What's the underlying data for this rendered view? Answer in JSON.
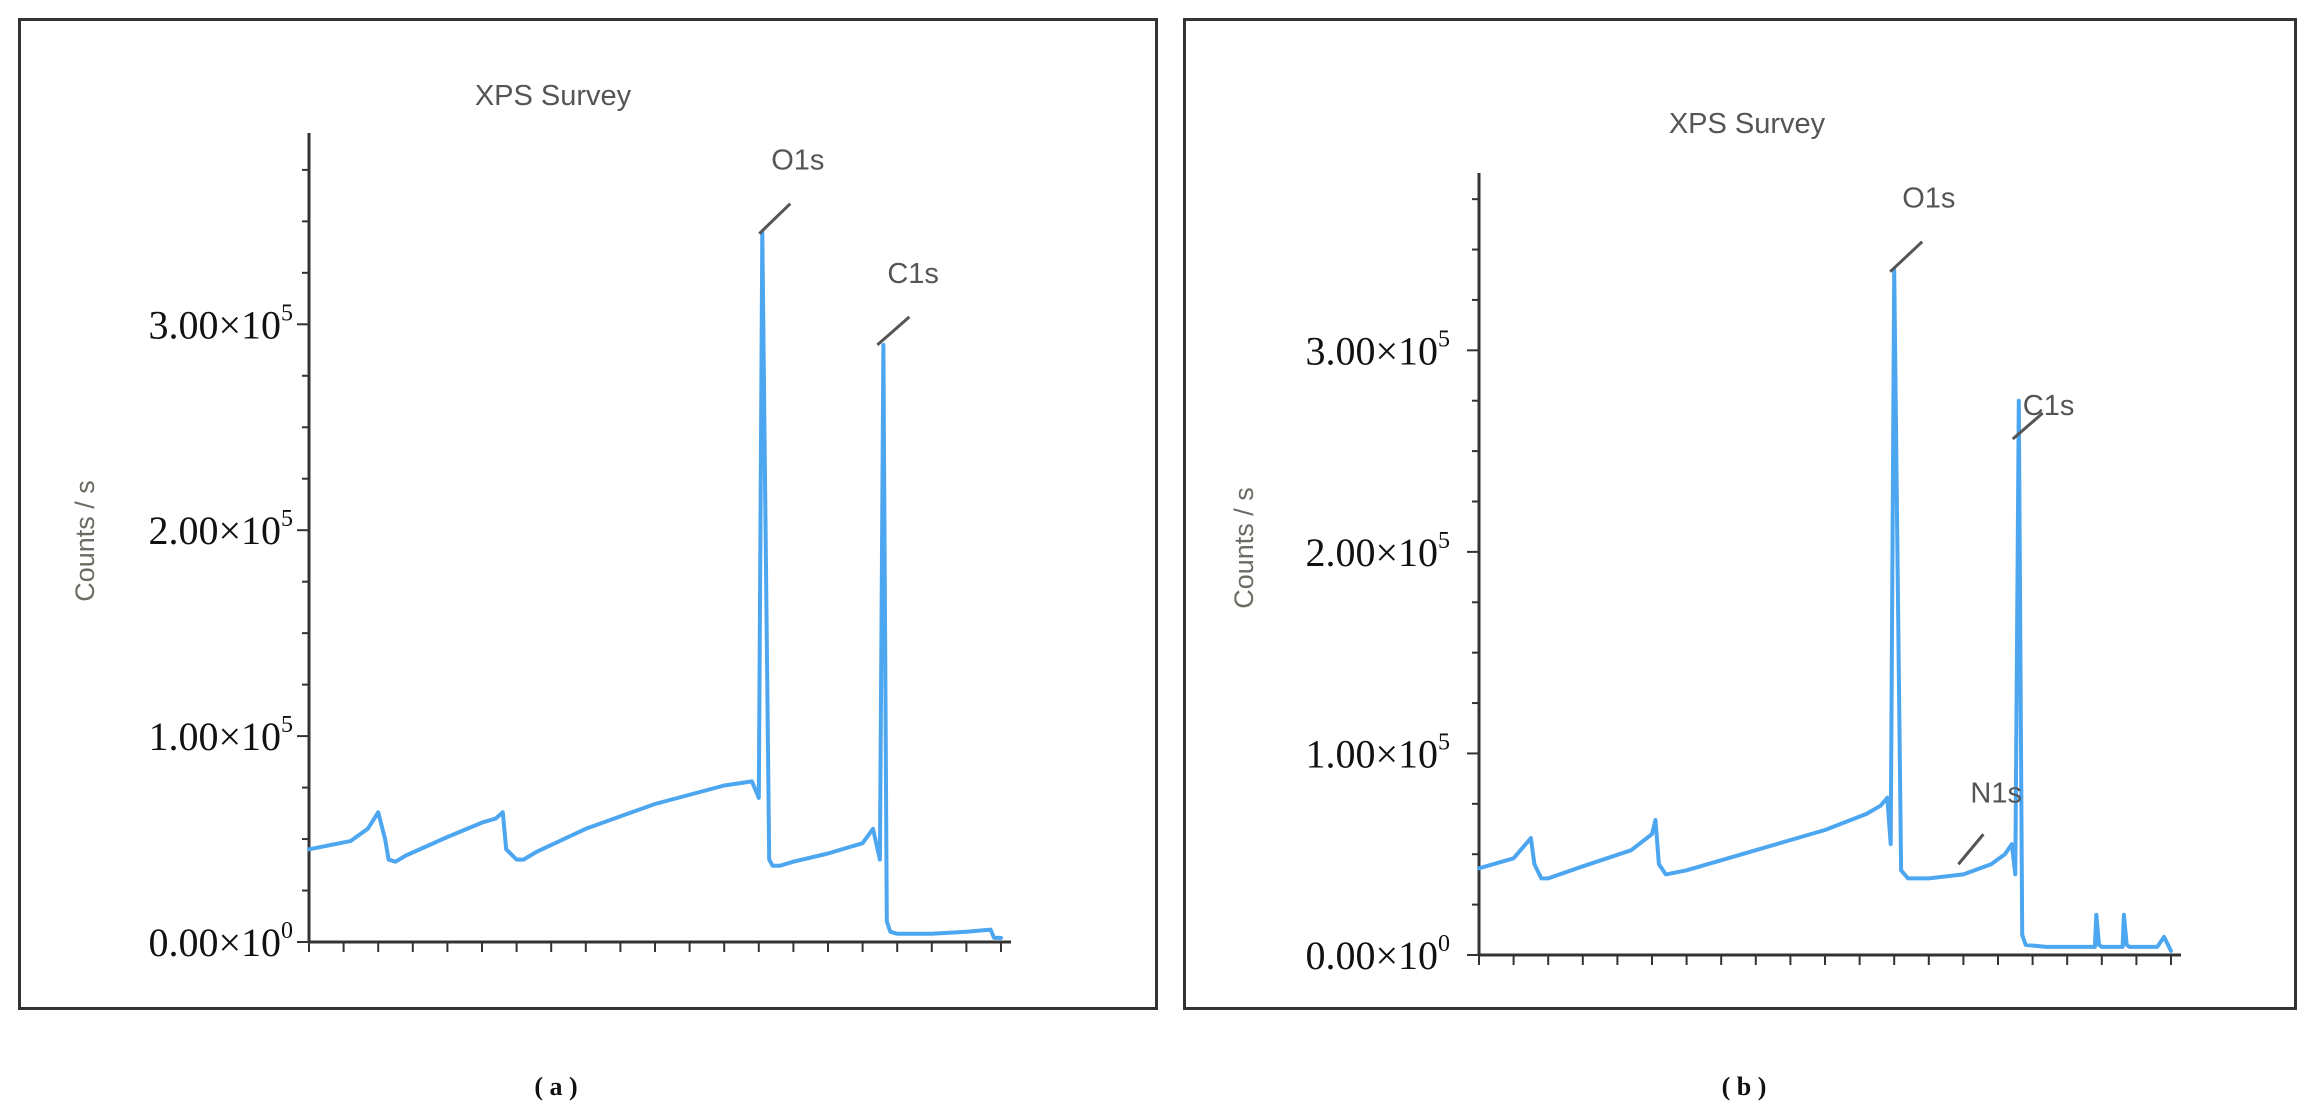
{
  "captions": [
    "( a )",
    "( b )"
  ],
  "colors": {
    "spectrum": "#4da6f0",
    "axis": "#333333",
    "frame": "#333333",
    "text": "#555555"
  },
  "chart_data": [
    {
      "type": "line",
      "title": "XPS Survey",
      "ylabel": "Counts / s",
      "xlabel": "",
      "ylim": [
        0,
        390000
      ],
      "y_ticks": [
        0,
        100000,
        200000,
        300000
      ],
      "y_tick_labels": [
        {
          "mantissa": "0.00×10",
          "exp": "0"
        },
        {
          "mantissa": "1.00×10",
          "exp": "5"
        },
        {
          "mantissa": "2.00×10",
          "exp": "5"
        },
        {
          "mantissa": "3.00×10",
          "exp": "5"
        }
      ],
      "x_tick_count": 21,
      "xlim": [
        0,
        100
      ],
      "grid": false,
      "series": [
        {
          "x": [
            0,
            6,
            8.5,
            10,
            11,
            11.5,
            12.5,
            14,
            20,
            25,
            27,
            28,
            28.5,
            30,
            31,
            33,
            40,
            50,
            60,
            64,
            65,
            65.5,
            66.5,
            67,
            68,
            70,
            75,
            80,
            81.5,
            82.5,
            83,
            83.5,
            84,
            85,
            90,
            95,
            98.5,
            99,
            100
          ],
          "y": [
            45000,
            49000,
            55000,
            63000,
            50000,
            40000,
            39000,
            42000,
            51000,
            58000,
            60000,
            63000,
            45000,
            40000,
            40000,
            44000,
            55000,
            67000,
            76000,
            78000,
            70000,
            345000,
            40000,
            37000,
            37000,
            39000,
            43000,
            48000,
            55000,
            40000,
            290000,
            10000,
            5000,
            4000,
            4000,
            5000,
            6000,
            2000,
            2000
          ]
        }
      ],
      "annotations": [
        {
          "text": "O1s",
          "x": 65.5,
          "y": 345000
        },
        {
          "text": "C1s",
          "x": 83,
          "y": 290000
        }
      ]
    },
    {
      "type": "line",
      "title": "XPS Survey",
      "ylabel": "Counts / s",
      "xlabel": "",
      "ylim": [
        0,
        385000
      ],
      "y_ticks": [
        0,
        100000,
        200000,
        300000
      ],
      "y_tick_labels": [
        {
          "mantissa": "0.00×10",
          "exp": "0"
        },
        {
          "mantissa": "1.00×10",
          "exp": "5"
        },
        {
          "mantissa": "2.00×10",
          "exp": "5"
        },
        {
          "mantissa": "3.00×10",
          "exp": "5"
        }
      ],
      "x_tick_count": 21,
      "xlim": [
        0,
        100
      ],
      "grid": false,
      "series": [
        {
          "x": [
            0,
            5,
            7.5,
            8,
            9,
            10,
            15,
            22,
            25,
            25.5,
            26,
            27,
            30,
            40,
            50,
            56,
            58,
            59,
            59.5,
            60,
            61,
            62,
            65,
            70,
            74,
            76,
            77,
            77.5,
            78,
            78.5,
            79,
            82,
            89,
            89.2,
            89.6,
            90,
            93,
            93.2,
            93.6,
            94,
            98,
            99,
            100
          ],
          "y": [
            43000,
            48000,
            58000,
            45000,
            38000,
            38000,
            44000,
            52000,
            60000,
            67000,
            45000,
            40000,
            42000,
            52000,
            62000,
            70000,
            74000,
            78000,
            55000,
            340000,
            42000,
            38000,
            38000,
            40000,
            45000,
            50000,
            55000,
            40000,
            275000,
            10000,
            5000,
            4000,
            4000,
            20000,
            5000,
            4000,
            4000,
            20000,
            5000,
            4000,
            4000,
            9000,
            2000
          ]
        }
      ],
      "annotations": [
        {
          "text": "O1s",
          "x": 60,
          "y": 340000
        },
        {
          "text": "C1s",
          "x": 78,
          "y": 255000
        },
        {
          "text": "N1s",
          "x": 70,
          "y": 48000
        }
      ]
    }
  ]
}
